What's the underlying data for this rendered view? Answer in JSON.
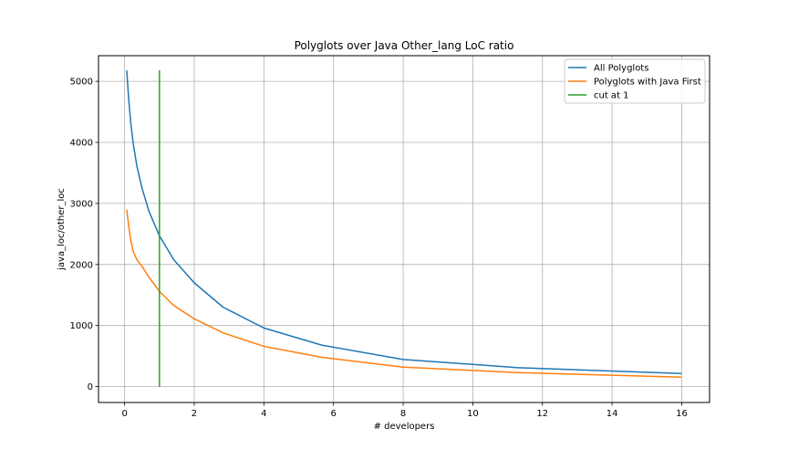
{
  "chart_data": {
    "type": "line",
    "title": "Polyglots over Java Other_lang LoC ratio",
    "xlabel": "# developers",
    "ylabel": "java_loc/other_loc",
    "xlim": [
      -0.75,
      16.8
    ],
    "ylim": [
      -260,
      5420
    ],
    "xticks": [
      0,
      2,
      4,
      6,
      8,
      10,
      12,
      14,
      16
    ],
    "yticks": [
      0,
      1000,
      2000,
      3000,
      4000,
      5000
    ],
    "grid": true,
    "legend_position": "upper right",
    "series": [
      {
        "name": "All Polyglots",
        "color": "#1f77b4",
        "x": [
          0.06,
          0.12,
          0.18,
          0.25,
          0.35,
          0.5,
          0.7,
          1.0,
          1.41,
          2.0,
          2.83,
          4.0,
          5.66,
          8.0,
          11.31,
          16.0
        ],
        "y": [
          5180,
          4690,
          4300,
          3970,
          3620,
          3250,
          2870,
          2470,
          2080,
          1700,
          1300,
          960,
          680,
          445,
          310,
          215
        ]
      },
      {
        "name": "Polyglots with Java First",
        "color": "#ff7f0e",
        "x": [
          0.06,
          0.12,
          0.18,
          0.25,
          0.35,
          0.5,
          0.7,
          1.0,
          1.41,
          2.0,
          2.83,
          4.0,
          5.66,
          8.0,
          11.31,
          16.0
        ],
        "y": [
          2900,
          2620,
          2390,
          2210,
          2080,
          1970,
          1790,
          1560,
          1330,
          1110,
          880,
          660,
          480,
          320,
          230,
          155
        ]
      },
      {
        "name": "cut at 1",
        "color": "#2ca02c",
        "x": [
          1,
          1
        ],
        "y": [
          0,
          5180
        ]
      }
    ]
  }
}
